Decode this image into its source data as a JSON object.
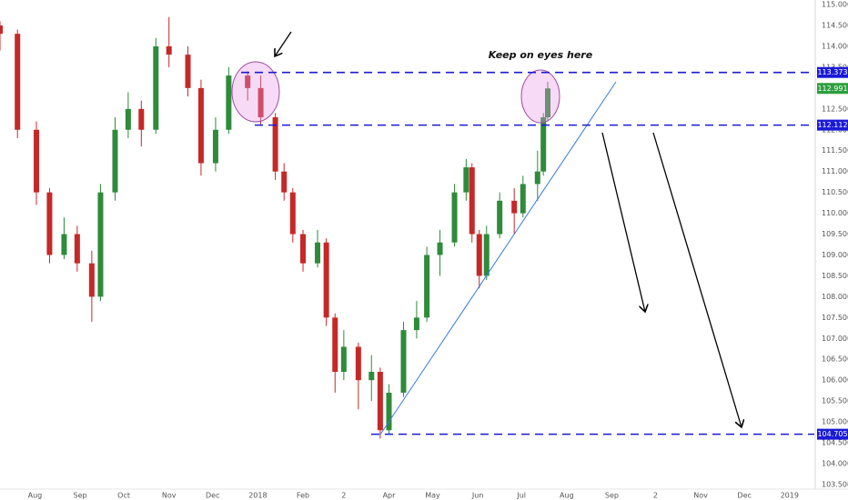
{
  "chart_data": {
    "type": "candlestick",
    "annotation": "Keep on eyes here",
    "up_color": "#2e8b3a",
    "down_color": "#c62828",
    "level_color": "#1a1ad6",
    "last_price_color": "#2e9e3e",
    "x": [
      7,
      19,
      32,
      41,
      51,
      60,
      70,
      76,
      86,
      95,
      104,
      114,
      123,
      136,
      145,
      155,
      164,
      177,
      186,
      196,
      202,
      208,
      215,
      225,
      231,
      237,
      243,
      253,
      262,
      268,
      274,
      284,
      293,
      300,
      309,
      319,
      327,
      331,
      336,
      341,
      350,
      360,
      366,
      376,
      380,
      383
    ],
    "open": [
      114.5,
      114.3,
      112.0,
      110.5,
      109.0,
      109.5,
      108.8,
      108.0,
      110.5,
      112.0,
      112.5,
      112.0,
      114.0,
      113.8,
      113.0,
      111.2,
      112.0,
      113.3,
      113.0,
      112.3,
      111.0,
      110.5,
      109.5,
      108.8,
      109.3,
      107.5,
      106.2,
      106.8,
      106.0,
      106.2,
      104.8,
      105.7,
      107.2,
      107.5,
      109.0,
      109.3,
      110.5,
      111.1,
      109.5,
      108.5,
      109.5,
      110.3,
      110.0,
      110.7,
      111.0,
      112.3
    ],
    "high": [
      114.6,
      114.4,
      112.2,
      110.6,
      109.9,
      109.7,
      109.1,
      110.7,
      112.3,
      112.9,
      112.7,
      114.2,
      114.7,
      114.0,
      113.2,
      112.3,
      113.5,
      113.4,
      113.3,
      112.4,
      111.2,
      110.6,
      109.6,
      109.6,
      109.4,
      107.6,
      107.2,
      106.9,
      106.6,
      106.3,
      105.9,
      107.4,
      107.9,
      109.2,
      109.6,
      110.7,
      111.3,
      111.2,
      109.6,
      109.7,
      110.5,
      110.6,
      110.9,
      111.5,
      112.4,
      113.15
    ],
    "low": [
      113.9,
      111.8,
      110.2,
      108.8,
      108.9,
      108.6,
      107.4,
      107.9,
      110.3,
      111.8,
      111.6,
      111.9,
      113.5,
      112.8,
      110.9,
      111.0,
      111.9,
      112.7,
      112.1,
      110.8,
      110.3,
      109.3,
      108.6,
      108.7,
      107.3,
      105.7,
      106.0,
      105.3,
      105.5,
      104.6,
      104.7,
      105.6,
      107.0,
      107.4,
      108.5,
      109.2,
      110.3,
      109.3,
      108.2,
      108.4,
      109.4,
      109.5,
      109.9,
      110.3,
      110.9,
      112.2
    ],
    "close": [
      114.3,
      112.0,
      110.5,
      109.0,
      109.5,
      108.8,
      108.0,
      110.5,
      112.0,
      112.5,
      112.0,
      114.0,
      113.8,
      113.0,
      111.2,
      112.0,
      113.3,
      113.0,
      112.3,
      111.0,
      110.5,
      109.5,
      108.8,
      109.3,
      107.5,
      106.2,
      106.8,
      106.0,
      106.2,
      104.8,
      105.7,
      107.2,
      107.5,
      109.0,
      109.3,
      110.5,
      111.1,
      109.5,
      108.5,
      109.5,
      110.3,
      110.0,
      110.7,
      111.0,
      112.3,
      112.991
    ],
    "levels": [
      113.373,
      112.112,
      104.705
    ],
    "last_price": 112.991,
    "xlim": [
      7,
      566
    ],
    "xticks": [
      {
        "value": 31,
        "label": "Aug"
      },
      {
        "value": 62,
        "label": "Sep"
      },
      {
        "value": 92,
        "label": "Oct"
      },
      {
        "value": 123,
        "label": "Nov"
      },
      {
        "value": 153,
        "label": "Dec"
      },
      {
        "value": 184,
        "label": "2018"
      },
      {
        "value": 215,
        "label": "Feb"
      },
      {
        "value": 243,
        "label": "2"
      },
      {
        "value": 274,
        "label": "Apr"
      },
      {
        "value": 304,
        "label": "May"
      },
      {
        "value": 335,
        "label": "Jun"
      },
      {
        "value": 365,
        "label": "Jul"
      },
      {
        "value": 396,
        "label": "Aug"
      },
      {
        "value": 427,
        "label": "Sep"
      },
      {
        "value": 457,
        "label": "2"
      },
      {
        "value": 488,
        "label": "Nov"
      },
      {
        "value": 518,
        "label": "Dec"
      },
      {
        "value": 549,
        "label": "2019"
      }
    ],
    "ylim": [
      103.39,
      115.11
    ],
    "yticks": [
      {
        "value": 103.5,
        "label": "103.500"
      },
      {
        "value": 104,
        "label": "104.000"
      },
      {
        "value": 104.5,
        "label": "104.500"
      },
      {
        "value": 105,
        "label": "105.000"
      },
      {
        "value": 105.5,
        "label": "105.500"
      },
      {
        "value": 106,
        "label": "106.000"
      },
      {
        "value": 106.5,
        "label": "106.500"
      },
      {
        "value": 107,
        "label": "107.000"
      },
      {
        "value": 107.5,
        "label": "107.500"
      },
      {
        "value": 108,
        "label": "108.000"
      },
      {
        "value": 108.5,
        "label": "108.500"
      },
      {
        "value": 109,
        "label": "109.000"
      },
      {
        "value": 109.5,
        "label": "109.500"
      },
      {
        "value": 110,
        "label": "110.000"
      },
      {
        "value": 110.5,
        "label": "110.500"
      },
      {
        "value": 111,
        "label": "111.000"
      },
      {
        "value": 111.5,
        "label": "111.500"
      },
      {
        "value": 112,
        "label": "112.000"
      },
      {
        "value": 112.5,
        "label": "112.500"
      },
      {
        "value": 113,
        "label": "113.000"
      },
      {
        "value": 113.5,
        "label": "113.500"
      },
      {
        "value": 114,
        "label": "114.000"
      },
      {
        "value": 114.5,
        "label": "114.500"
      },
      {
        "value": 115,
        "label": "115.000"
      }
    ]
  }
}
